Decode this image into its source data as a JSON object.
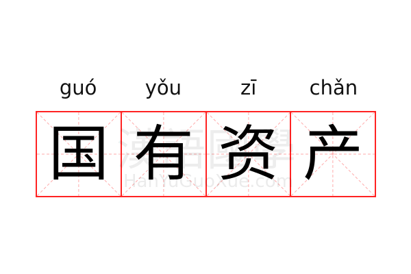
{
  "word": [
    {
      "pinyin": "guó",
      "char": "国"
    },
    {
      "pinyin": "yǒu",
      "char": "有"
    },
    {
      "pinyin": "zī",
      "char": "资"
    },
    {
      "pinyin": "chǎn",
      "char": "产"
    }
  ],
  "watermark": {
    "text": "漢語國學",
    "site": "HanYuGuoXue.com"
  },
  "colors": {
    "grid": "#ff2222",
    "guide": "#ffaaaa",
    "text": "#000000"
  }
}
